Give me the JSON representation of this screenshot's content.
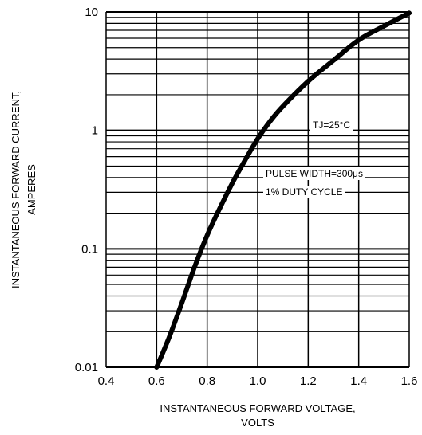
{
  "chart_data": {
    "type": "line",
    "title": "",
    "xlabel_line1": "INSTANTANEOUS FORWARD VOLTAGE,",
    "xlabel_line2": "VOLTS",
    "ylabel_line1": "INSTANTANEOUS FORWARD CURRENT,",
    "ylabel_line2": "AMPERES",
    "xlim": [
      0.4,
      1.6
    ],
    "ylim": [
      0.01,
      10
    ],
    "yscale": "log",
    "grid": true,
    "x_ticks": [
      0.4,
      0.6,
      0.8,
      1.0,
      1.2,
      1.4,
      1.6
    ],
    "x_tick_labels": [
      "0.4",
      "0.6",
      "0.8",
      "1.0",
      "1.2",
      "1.4",
      "1.6"
    ],
    "y_ticks": [
      0.01,
      0.1,
      1,
      10
    ],
    "y_tick_labels": [
      "0.01",
      "0.1",
      "1",
      "10"
    ],
    "annotations": {
      "temp": "TJ=25°C",
      "pulse_line1": "PULSE WIDTH=300μs",
      "pulse_line2": "1% DUTY CYCLE"
    },
    "series": [
      {
        "color": "#000000",
        "x": [
          0.6,
          0.65,
          0.7,
          0.75,
          0.8,
          0.85,
          0.9,
          0.95,
          1.0,
          1.05,
          1.1,
          1.2,
          1.3,
          1.4,
          1.5,
          1.6
        ],
        "y": [
          0.01,
          0.018,
          0.035,
          0.07,
          0.13,
          0.22,
          0.36,
          0.56,
          0.85,
          1.2,
          1.6,
          2.6,
          3.9,
          5.8,
          7.6,
          9.8
        ]
      }
    ]
  }
}
